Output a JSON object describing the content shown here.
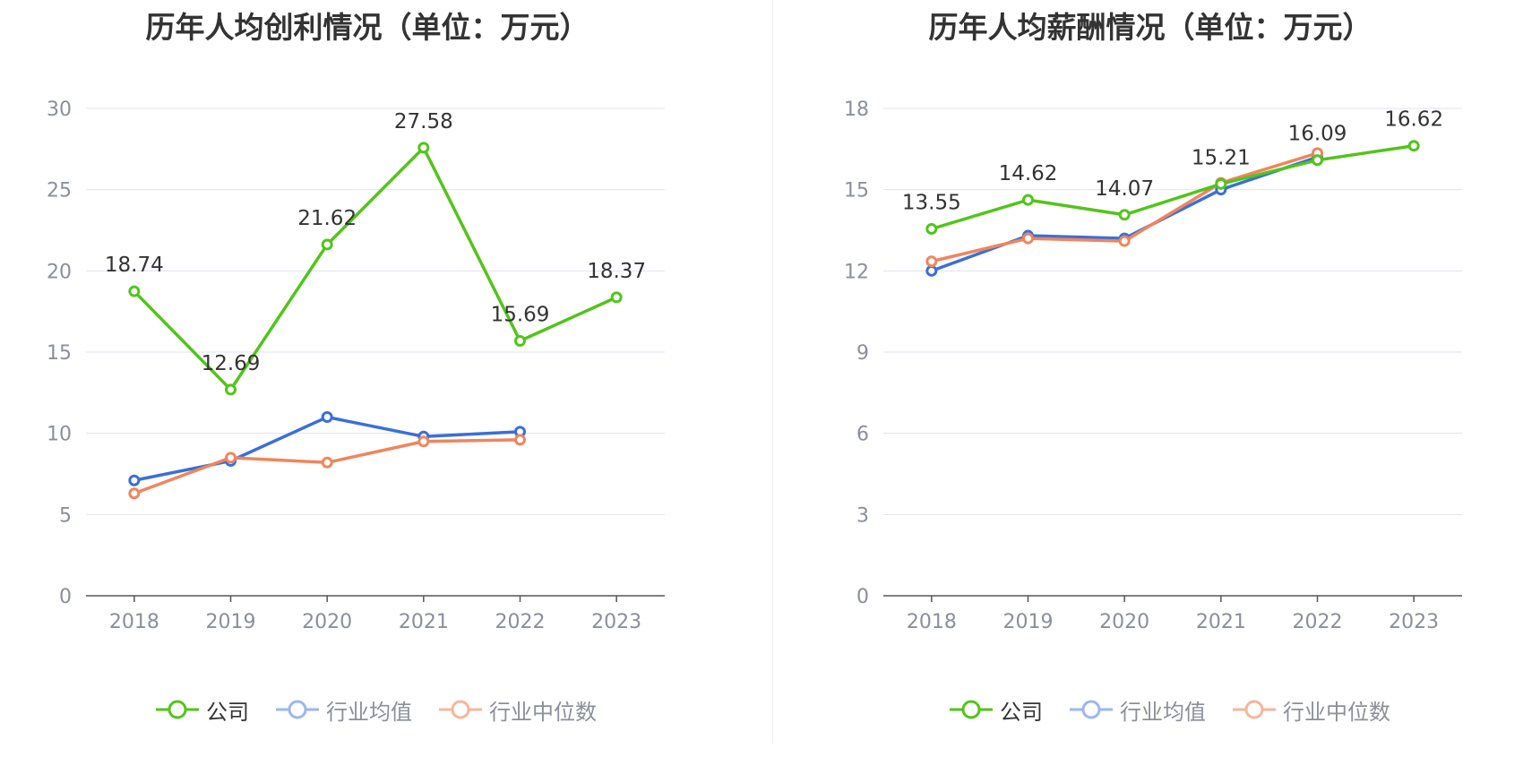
{
  "colors": {
    "company": "#52c41a",
    "industry_avg": "#3a6fd8",
    "industry_median": "#f0855c",
    "legend_avg": "#9bb6f2",
    "legend_median": "#f7b59b",
    "grid": "#dfe3f0",
    "axis": "#555555"
  },
  "legend": [
    "公司",
    "行业均值",
    "行业中位数"
  ],
  "chart_data": [
    {
      "type": "line",
      "title": "历年人均创利情况（单位：万元）",
      "categories": [
        "2018",
        "2019",
        "2020",
        "2021",
        "2022",
        "2023"
      ],
      "ylim": [
        0,
        30
      ],
      "yticks": [
        "0",
        "5",
        "10",
        "15",
        "20",
        "25",
        "30"
      ],
      "grid": true,
      "legend_position": "bottom",
      "series": [
        {
          "name": "公司",
          "values": [
            18.74,
            12.69,
            21.62,
            27.58,
            15.69,
            18.37
          ],
          "labels": [
            "18.74",
            "12.69",
            "21.62",
            "27.58",
            "15.69",
            "18.37"
          ]
        },
        {
          "name": "行业均值",
          "values": [
            7.1,
            8.3,
            11.0,
            9.8,
            10.1,
            null
          ]
        },
        {
          "name": "行业中位数",
          "values": [
            6.3,
            8.5,
            8.2,
            9.5,
            9.6,
            null
          ]
        }
      ]
    },
    {
      "type": "line",
      "title": "历年人均薪酬情况（单位：万元）",
      "categories": [
        "2018",
        "2019",
        "2020",
        "2021",
        "2022",
        "2023"
      ],
      "ylim": [
        0,
        18
      ],
      "yticks": [
        "0",
        "3",
        "6",
        "9",
        "12",
        "15",
        "18"
      ],
      "grid": true,
      "legend_position": "bottom",
      "series": [
        {
          "name": "公司",
          "values": [
            13.55,
            14.62,
            14.07,
            15.21,
            16.09,
            16.62
          ],
          "labels": [
            "13.55",
            "14.62",
            "14.07",
            "15.21",
            "16.09",
            "16.62"
          ]
        },
        {
          "name": "行业均值",
          "values": [
            12.0,
            13.3,
            13.2,
            15.0,
            16.2,
            null
          ]
        },
        {
          "name": "行业中位数",
          "values": [
            12.35,
            13.2,
            13.1,
            15.25,
            16.35,
            null
          ]
        }
      ]
    }
  ]
}
